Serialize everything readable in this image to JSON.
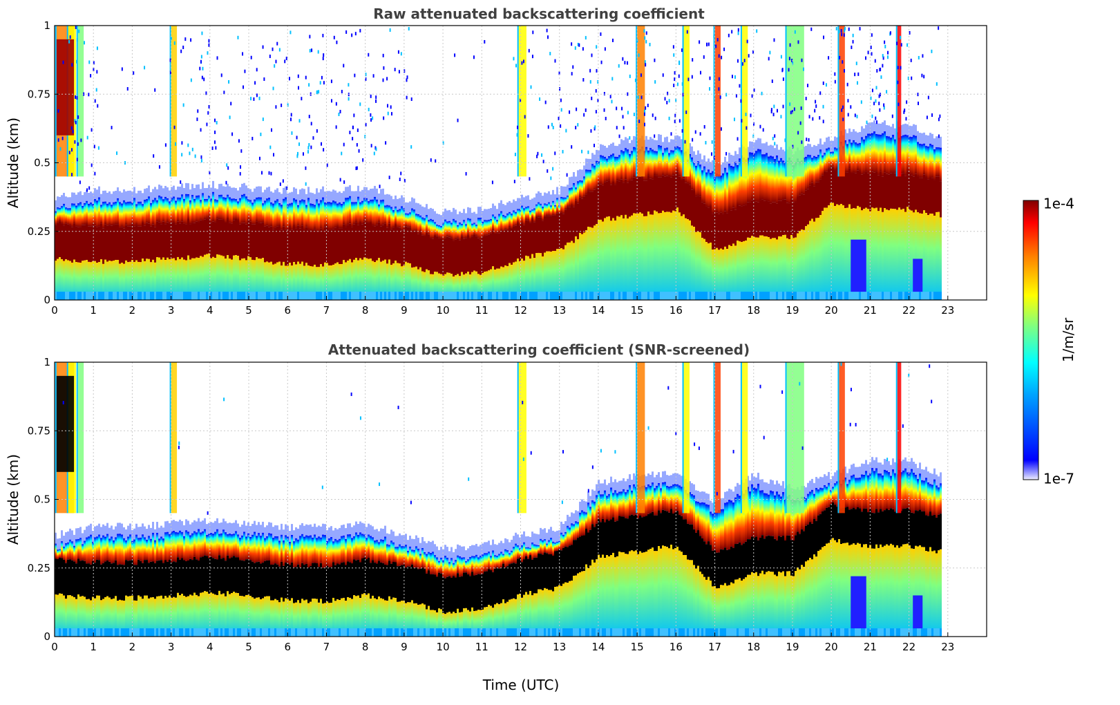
{
  "chart_data": [
    {
      "type": "heatmap",
      "title": "Raw attenuated backscattering coefficient",
      "xlabel": "",
      "ylabel": "Altitude (km)",
      "xlim": [
        0,
        24
      ],
      "ylim": [
        0,
        1
      ],
      "x_ticks": [
        "0",
        "1",
        "2",
        "3",
        "4",
        "5",
        "6",
        "7",
        "8",
        "9",
        "10",
        "11",
        "12",
        "13",
        "14",
        "15",
        "16",
        "17",
        "18",
        "19",
        "20",
        "21",
        "22",
        "23"
      ],
      "y_ticks": [
        "0",
        "0.25",
        "0.5",
        "0.75",
        "1"
      ],
      "y_tick_values": [
        0,
        0.25,
        0.5,
        0.75,
        1
      ],
      "grid": true,
      "data_end_hour": 22.8,
      "layer_top_km": [
        [
          0,
          0.33
        ],
        [
          1,
          0.36
        ],
        [
          2,
          0.36
        ],
        [
          3,
          0.37
        ],
        [
          4,
          0.38
        ],
        [
          5,
          0.37
        ],
        [
          6,
          0.36
        ],
        [
          7,
          0.36
        ],
        [
          8,
          0.37
        ],
        [
          9,
          0.33
        ],
        [
          10,
          0.28
        ],
        [
          11,
          0.29
        ],
        [
          12,
          0.33
        ],
        [
          13,
          0.36
        ],
        [
          14,
          0.52
        ],
        [
          15,
          0.55
        ],
        [
          16,
          0.55
        ],
        [
          17,
          0.45
        ],
        [
          18,
          0.55
        ],
        [
          19,
          0.5
        ],
        [
          20,
          0.55
        ],
        [
          21,
          0.6
        ],
        [
          22,
          0.6
        ],
        [
          22.8,
          0.55
        ]
      ],
      "layer_core_km": [
        [
          0,
          0.22
        ],
        [
          1,
          0.21
        ],
        [
          2,
          0.21
        ],
        [
          3,
          0.22
        ],
        [
          4,
          0.23
        ],
        [
          5,
          0.22
        ],
        [
          6,
          0.2
        ],
        [
          7,
          0.2
        ],
        [
          8,
          0.22
        ],
        [
          9,
          0.2
        ],
        [
          10,
          0.16
        ],
        [
          11,
          0.17
        ],
        [
          12,
          0.22
        ],
        [
          13,
          0.25
        ],
        [
          14,
          0.36
        ],
        [
          15,
          0.38
        ],
        [
          16,
          0.4
        ],
        [
          17,
          0.25
        ],
        [
          18,
          0.3
        ],
        [
          19,
          0.3
        ],
        [
          20,
          0.42
        ],
        [
          21,
          0.4
        ],
        [
          22,
          0.4
        ],
        [
          22.8,
          0.38
        ]
      ]
    },
    {
      "type": "heatmap",
      "title": "Attenuated backscattering coefficient (SNR-screened)",
      "xlabel": "Time (UTC)",
      "ylabel": "Altitude (km)",
      "xlim": [
        0,
        24
      ],
      "ylim": [
        0,
        1
      ],
      "x_ticks": [
        "0",
        "1",
        "2",
        "3",
        "4",
        "5",
        "6",
        "7",
        "8",
        "9",
        "10",
        "11",
        "12",
        "13",
        "14",
        "15",
        "16",
        "17",
        "18",
        "19",
        "20",
        "21",
        "22",
        "23"
      ],
      "y_ticks": [
        "0",
        "0.25",
        "0.5",
        "0.75",
        "1"
      ],
      "y_tick_values": [
        0,
        0.25,
        0.5,
        0.75,
        1
      ],
      "grid": true,
      "data_end_hour": 22.8,
      "saturated_color": "#000000"
    }
  ],
  "colorbar": {
    "label": "1/m/sr",
    "max_label": "1e-4",
    "min_label": "1e-7",
    "scale": "log",
    "range": [
      1e-07,
      0.0001
    ]
  },
  "colors": {
    "title": "#404040",
    "grid": "#c8c8c8",
    "background": "#ffffff"
  }
}
